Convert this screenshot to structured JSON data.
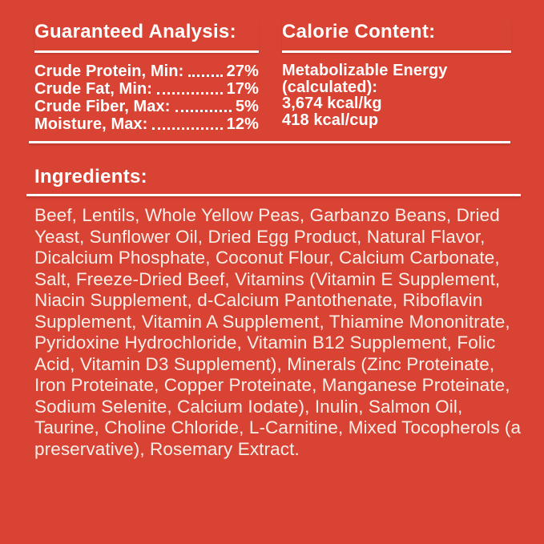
{
  "colors": {
    "background": "#D94334",
    "heading_text": "#FFFFFF",
    "body_text": "#F8EFE9",
    "rule": "#FFFFFF"
  },
  "guaranteed_analysis": {
    "heading": "Guaranteed Analysis:",
    "rows": [
      {
        "label": "Crude Protein, Min:",
        "value": "27%"
      },
      {
        "label": "Crude Fat, Min:",
        "value": "17%"
      },
      {
        "label": "Crude Fiber, Max:",
        "value": "5%"
      },
      {
        "label": "Moisture, Max:",
        "value": "12%"
      }
    ]
  },
  "calorie_content": {
    "heading": "Calorie Content:",
    "lines": [
      "Metabolizable Energy",
      "(calculated):",
      "3,674 kcal/kg",
      "418 kcal/cup"
    ]
  },
  "ingredients": {
    "heading": "Ingredients:",
    "text": "Beef, Lentils, Whole Yellow Peas, Garbanzo Beans, Dried Yeast, Sunflower Oil, Dried Egg Product, Natural Flavor, Dicalcium Phosphate, Coconut Flour, Calcium Carbonate, Salt, Freeze-Dried Beef, Vitamins (Vitamin E Supplement, Niacin Supplement, d-Calcium Pantothenate, Riboflavin Supplement, Vitamin A Supplement, Thiamine Mononitrate, Pyridoxine Hydrochloride, Vitamin B12 Supplement, Folic Acid, Vitamin D3 Supplement), Minerals (Zinc Proteinate, Iron Proteinate, Copper Proteinate, Manganese Proteinate, Sodium Selenite, Calcium Iodate), Inulin, Salmon Oil, Taurine, Choline Chloride, L-Carnitine, Mixed Tocopherols (a preservative), Rosemary Extract."
  }
}
